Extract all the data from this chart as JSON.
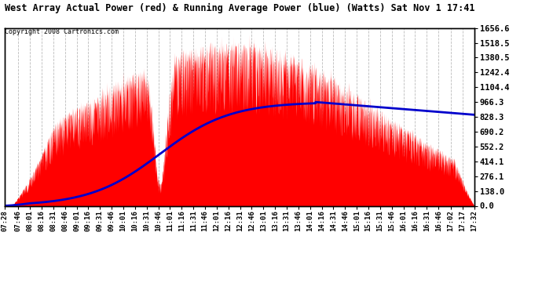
{
  "title": "West Array Actual Power (red) & Running Average Power (blue) (Watts) Sat Nov 1 17:41",
  "copyright": "Copyright 2008 Cartronics.com",
  "ylabel_right": [
    "1656.6",
    "1518.5",
    "1380.5",
    "1242.4",
    "1104.4",
    "966.3",
    "828.3",
    "690.2",
    "552.2",
    "414.1",
    "276.1",
    "138.0",
    "0.0"
  ],
  "ymax": 1656.6,
  "ymin": 0.0,
  "background_color": "#ffffff",
  "plot_bg_color": "#ffffff",
  "grid_color": "#bbbbbb",
  "red_fill": "#ff0000",
  "blue_line": "#0000cc",
  "x_labels": [
    "07:28",
    "07:46",
    "08:01",
    "08:16",
    "08:31",
    "08:46",
    "09:01",
    "09:16",
    "09:31",
    "09:46",
    "10:01",
    "10:16",
    "10:31",
    "10:46",
    "11:01",
    "11:16",
    "11:31",
    "11:46",
    "12:01",
    "12:16",
    "12:31",
    "12:46",
    "13:01",
    "13:16",
    "13:31",
    "13:46",
    "14:01",
    "14:16",
    "14:31",
    "14:46",
    "15:01",
    "15:16",
    "15:31",
    "15:46",
    "16:01",
    "16:16",
    "16:31",
    "16:46",
    "17:02",
    "17:17",
    "17:32"
  ]
}
